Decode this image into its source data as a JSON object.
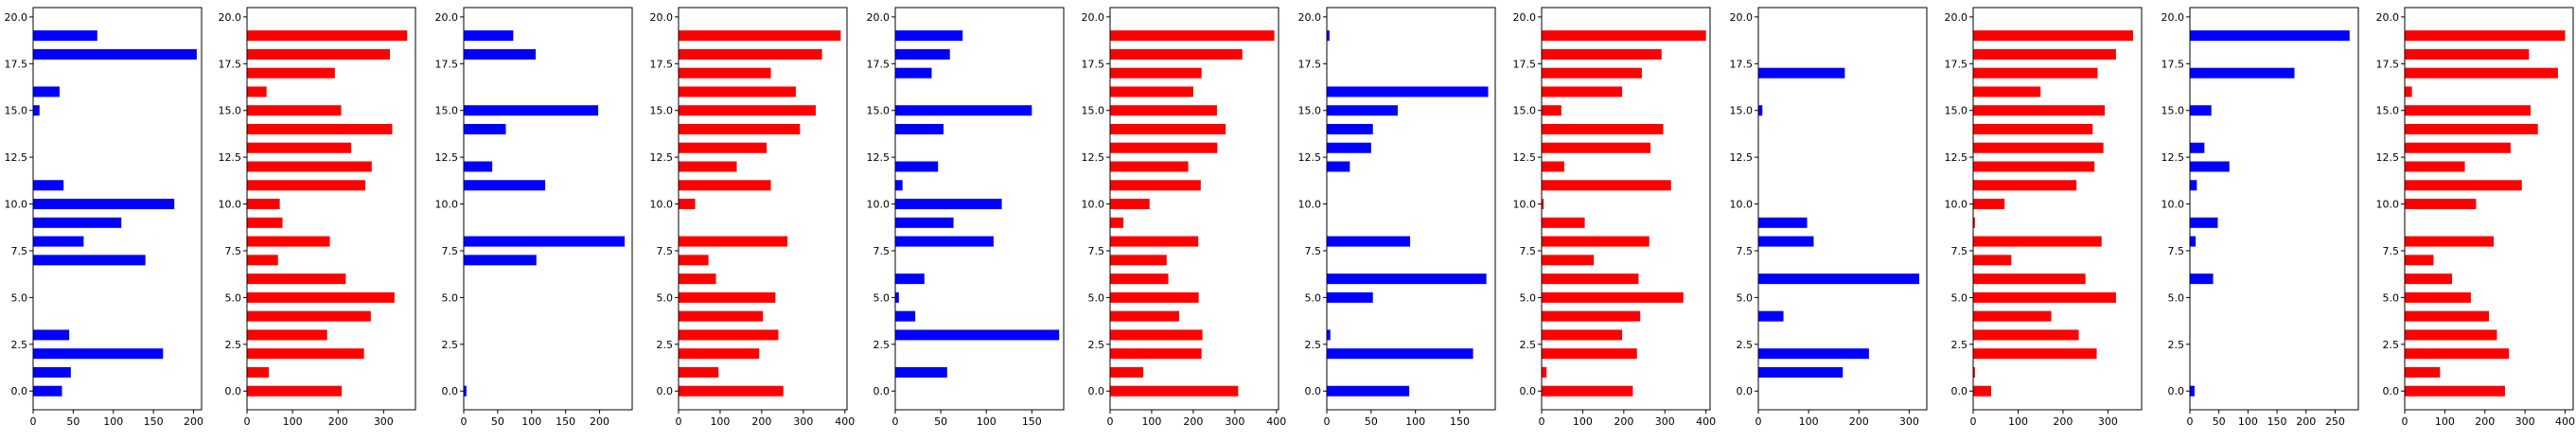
{
  "chart_data": [
    {
      "type": "bar",
      "orientation": "horizontal",
      "color": "#0000ff",
      "xlim": [
        0,
        210
      ],
      "ylim": [
        -1,
        20.5
      ],
      "xticks": [
        0,
        50,
        100,
        150,
        200
      ],
      "yticks": [
        0.0,
        2.5,
        5.0,
        7.5,
        10.0,
        12.5,
        15.0,
        17.5,
        20.0
      ],
      "grid": false,
      "y": [
        0,
        1,
        2,
        3,
        7,
        8,
        9,
        10,
        11,
        15,
        16,
        18,
        19
      ],
      "values": [
        36,
        47,
        162,
        45,
        140,
        63,
        110,
        176,
        38,
        8,
        33,
        204,
        80
      ]
    },
    {
      "type": "bar",
      "orientation": "horizontal",
      "color": "#ff0000",
      "xlim": [
        0,
        370
      ],
      "ylim": [
        -1,
        20.5
      ],
      "xticks": [
        0,
        100,
        200,
        300
      ],
      "yticks": [
        0.0,
        2.5,
        5.0,
        7.5,
        10.0,
        12.5,
        15.0,
        17.5,
        20.0
      ],
      "grid": false,
      "y": [
        0,
        1,
        2,
        3,
        4,
        5,
        6,
        7,
        8,
        9,
        10,
        11,
        12,
        13,
        14,
        15,
        16,
        17,
        18,
        19
      ],
      "values": [
        208,
        48,
        257,
        176,
        272,
        324,
        217,
        68,
        182,
        78,
        72,
        260,
        274,
        229,
        319,
        207,
        43,
        193,
        314,
        352
      ]
    },
    {
      "type": "bar",
      "orientation": "horizontal",
      "color": "#0000ff",
      "xlim": [
        0,
        248
      ],
      "ylim": [
        -1,
        20.5
      ],
      "xticks": [
        0,
        50,
        100,
        150,
        200
      ],
      "yticks": [
        0.0,
        2.5,
        5.0,
        7.5,
        10.0,
        12.5,
        15.0,
        17.5,
        20.0
      ],
      "grid": false,
      "y": [
        0,
        7,
        8,
        11,
        12,
        14,
        15,
        18,
        19
      ],
      "values": [
        4,
        107,
        237,
        120,
        42,
        62,
        198,
        106,
        73
      ]
    },
    {
      "type": "bar",
      "orientation": "horizontal",
      "color": "#ff0000",
      "xlim": [
        0,
        405
      ],
      "ylim": [
        -1,
        20.5
      ],
      "xticks": [
        0,
        100,
        200,
        300,
        400
      ],
      "yticks": [
        0.0,
        2.5,
        5.0,
        7.5,
        10.0,
        12.5,
        15.0,
        17.5,
        20.0
      ],
      "grid": false,
      "y": [
        0,
        1,
        2,
        3,
        4,
        5,
        6,
        7,
        8,
        10,
        11,
        12,
        13,
        14,
        15,
        16,
        17,
        18,
        19
      ],
      "values": [
        252,
        96,
        194,
        240,
        203,
        233,
        90,
        72,
        262,
        40,
        222,
        140,
        212,
        292,
        330,
        282,
        222,
        345,
        390
      ]
    },
    {
      "type": "bar",
      "orientation": "horizontal",
      "color": "#0000ff",
      "xlim": [
        0,
        185
      ],
      "ylim": [
        -1,
        20.5
      ],
      "xticks": [
        0,
        50,
        100,
        150
      ],
      "yticks": [
        0.0,
        2.5,
        5.0,
        7.5,
        10.0,
        12.5,
        15.0,
        17.5,
        20.0
      ],
      "grid": false,
      "y": [
        1,
        3,
        4,
        5,
        6,
        8,
        9,
        10,
        11,
        12,
        14,
        15,
        17,
        18,
        19
      ],
      "values": [
        57,
        180,
        22,
        4,
        32,
        108,
        64,
        117,
        8,
        47,
        53,
        150,
        40,
        60,
        74
      ]
    },
    {
      "type": "bar",
      "orientation": "horizontal",
      "color": "#ff0000",
      "xlim": [
        0,
        405
      ],
      "ylim": [
        -1,
        20.5
      ],
      "xticks": [
        0,
        100,
        200,
        300,
        400
      ],
      "yticks": [
        0.0,
        2.5,
        5.0,
        7.5,
        10.0,
        12.5,
        15.0,
        17.5,
        20.0
      ],
      "grid": false,
      "y": [
        0,
        1,
        2,
        3,
        4,
        5,
        6,
        7,
        8,
        9,
        10,
        11,
        12,
        13,
        14,
        15,
        16,
        17,
        18,
        19
      ],
      "values": [
        308,
        80,
        220,
        222,
        166,
        213,
        140,
        136,
        212,
        32,
        95,
        218,
        188,
        258,
        278,
        257,
        200,
        220,
        318,
        395
      ]
    },
    {
      "type": "bar",
      "orientation": "horizontal",
      "color": "#0000ff",
      "xlim": [
        0,
        190
      ],
      "ylim": [
        -1,
        20.5
      ],
      "xticks": [
        0,
        50,
        100,
        150
      ],
      "yticks": [
        0.0,
        2.5,
        5.0,
        7.5,
        10.0,
        12.5,
        15.0,
        17.5,
        20.0
      ],
      "grid": false,
      "y": [
        0,
        2,
        3,
        5,
        6,
        8,
        12,
        13,
        14,
        15,
        16,
        19
      ],
      "values": [
        93,
        165,
        4,
        52,
        180,
        94,
        26,
        50,
        52,
        80,
        182,
        3
      ]
    },
    {
      "type": "bar",
      "orientation": "horizontal",
      "color": "#ff0000",
      "xlim": [
        0,
        410
      ],
      "ylim": [
        -1,
        20.5
      ],
      "xticks": [
        0,
        100,
        200,
        300,
        400
      ],
      "yticks": [
        0.0,
        2.5,
        5.0,
        7.5,
        10.0,
        12.5,
        15.0,
        17.5,
        20.0
      ],
      "grid": false,
      "y": [
        0,
        1,
        2,
        3,
        4,
        5,
        6,
        7,
        8,
        9,
        10,
        11,
        12,
        13,
        14,
        15,
        16,
        17,
        18,
        19
      ],
      "values": [
        222,
        12,
        232,
        196,
        240,
        345,
        236,
        127,
        262,
        105,
        5,
        315,
        55,
        265,
        296,
        48,
        196,
        244,
        292,
        400
      ]
    },
    {
      "type": "bar",
      "orientation": "horizontal",
      "color": "#0000ff",
      "xlim": [
        0,
        335
      ],
      "ylim": [
        -1,
        20.5
      ],
      "xticks": [
        0,
        100,
        200,
        300
      ],
      "yticks": [
        0.0,
        2.5,
        5.0,
        7.5,
        10.0,
        12.5,
        15.0,
        17.5,
        20.0
      ],
      "grid": false,
      "y": [
        1,
        2,
        4,
        6,
        8,
        9,
        15,
        17
      ],
      "values": [
        168,
        220,
        50,
        320,
        110,
        97,
        8,
        172
      ]
    },
    {
      "type": "bar",
      "orientation": "horizontal",
      "color": "#ff0000",
      "xlim": [
        0,
        375
      ],
      "ylim": [
        -1,
        20.5
      ],
      "xticks": [
        0,
        100,
        200,
        300
      ],
      "yticks": [
        0.0,
        2.5,
        5.0,
        7.5,
        10.0,
        12.5,
        15.0,
        17.5,
        20.0
      ],
      "grid": false,
      "y": [
        0,
        1,
        2,
        3,
        4,
        5,
        6,
        7,
        8,
        9,
        10,
        11,
        12,
        13,
        14,
        15,
        16,
        17,
        18,
        19
      ],
      "values": [
        40,
        4,
        275,
        235,
        174,
        318,
        250,
        85,
        286,
        4,
        70,
        230,
        270,
        290,
        266,
        293,
        150,
        277,
        318,
        356
      ]
    },
    {
      "type": "bar",
      "orientation": "horizontal",
      "color": "#0000ff",
      "xlim": [
        0,
        290
      ],
      "ylim": [
        -1,
        20.5
      ],
      "xticks": [
        0,
        50,
        100,
        150,
        200,
        250
      ],
      "yticks": [
        0.0,
        2.5,
        5.0,
        7.5,
        10.0,
        12.5,
        15.0,
        17.5,
        20.0
      ],
      "grid": false,
      "y": [
        0,
        6,
        8,
        9,
        11,
        12,
        13,
        15,
        17,
        19
      ],
      "values": [
        8,
        40,
        10,
        48,
        12,
        68,
        25,
        37,
        180,
        275
      ]
    },
    {
      "type": "bar",
      "orientation": "horizontal",
      "color": "#ff0000",
      "xlim": [
        0,
        420
      ],
      "ylim": [
        -1,
        20.5
      ],
      "xticks": [
        0,
        100,
        200,
        300,
        400
      ],
      "yticks": [
        0.0,
        2.5,
        5.0,
        7.5,
        10.0,
        12.5,
        15.0,
        17.5,
        20.0
      ],
      "grid": false,
      "y": [
        0,
        1,
        2,
        3,
        4,
        5,
        6,
        7,
        8,
        10,
        11,
        12,
        13,
        14,
        15,
        16,
        17,
        18,
        19
      ],
      "values": [
        250,
        88,
        260,
        230,
        210,
        165,
        118,
        72,
        222,
        178,
        292,
        150,
        264,
        332,
        314,
        18,
        382,
        310,
        400
      ]
    }
  ]
}
